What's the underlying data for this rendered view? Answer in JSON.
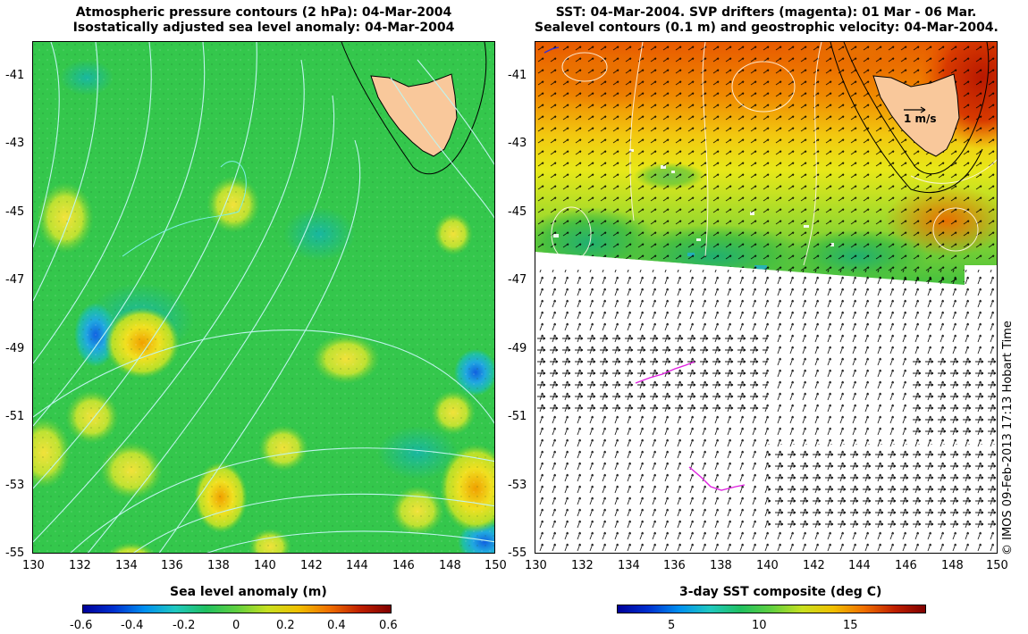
{
  "left": {
    "title_line1": "Atmospheric pressure contours (2 hPa): 04-Mar-2004",
    "title_line2": "Isostatically adjusted sea level anomaly: 04-Mar-2004",
    "colorbar_title": "Sea level anomaly (m)",
    "colorbar_ticks": [
      "-0.6",
      "-0.4",
      "-0.2",
      "0",
      "0.2",
      "0.4",
      "0.6"
    ]
  },
  "right": {
    "title_line1": "SST: 04-Mar-2004. SVP drifters (magenta): 01 Mar - 06 Mar.",
    "title_line2": "Sealevel contours (0.1 m) and geostrophic velocity: 04-Mar-2004.",
    "colorbar_title": "3-day SST composite (deg C)",
    "colorbar_ticks": [
      "5",
      "10",
      "15"
    ],
    "velocity_scale_label": "1 m/s"
  },
  "lat_ticks": [
    "-41",
    "-43",
    "-45",
    "-47",
    "-49",
    "-51",
    "-53",
    "-55"
  ],
  "lon_ticks": [
    "130",
    "132",
    "134",
    "136",
    "138",
    "140",
    "142",
    "144",
    "146",
    "148",
    "150"
  ],
  "credit": "© IMOS 09-Feb-2013 17:13 Hobart Time",
  "colors": {
    "land": "#f9c89b",
    "sla_base": "#22c04a",
    "drifter": "#e020e0",
    "contour_left": "#bff4ee",
    "contour_right": "#fff6e6"
  }
}
